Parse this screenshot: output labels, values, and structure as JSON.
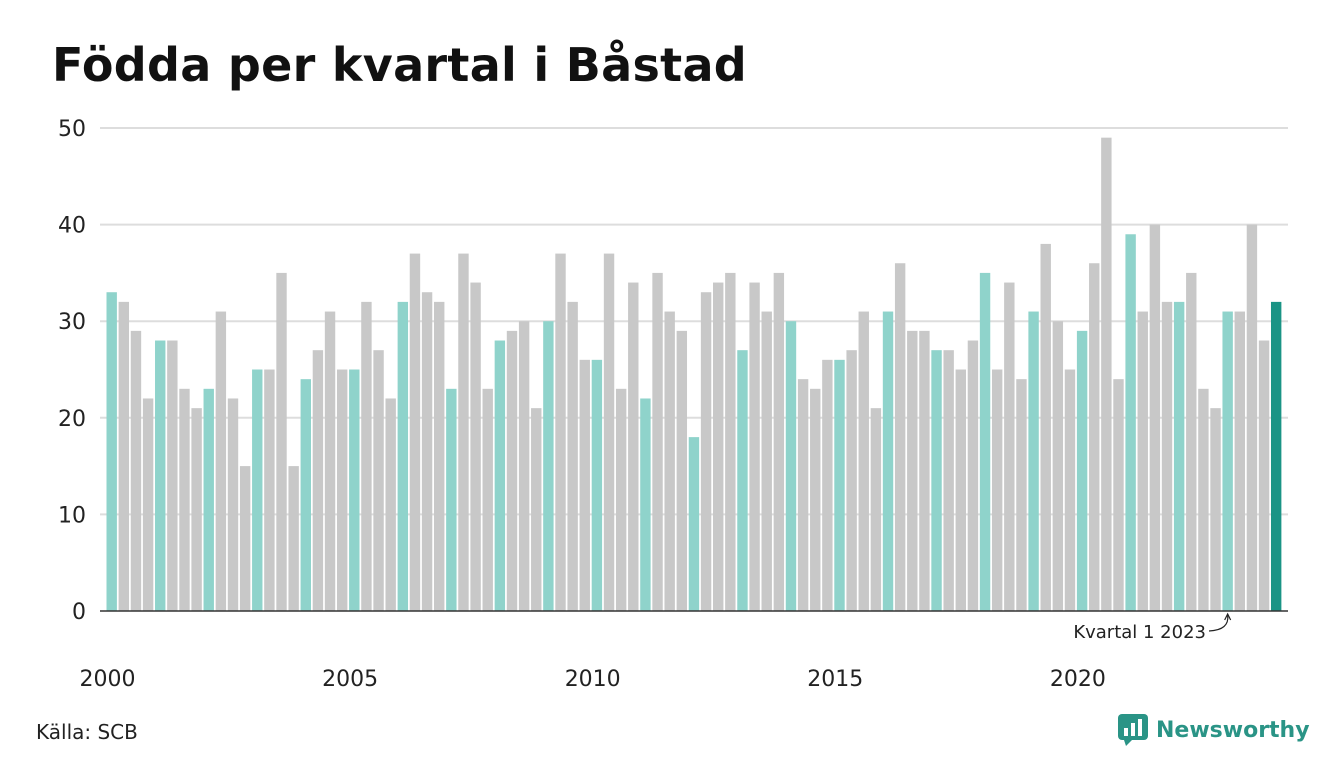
{
  "title": "Födda per kvartal i Båstad",
  "source": "Källa: SCB",
  "brand": "Newsworthy",
  "colors": {
    "q1": "#8fd3cb",
    "other": "#c8c8c8",
    "latest": "#1a9485",
    "grid": "#dddddd",
    "axis": "#333333",
    "brand": "#2a9486"
  },
  "chart_data": {
    "type": "bar",
    "title": "Födda per kvartal i Båstad",
    "xlabel": "",
    "ylabel": "",
    "ylim": [
      0,
      50
    ],
    "yticks": [
      0,
      10,
      20,
      30,
      40,
      50
    ],
    "xtick_labels": [
      "2000",
      "2005",
      "2010",
      "2015",
      "2020"
    ],
    "start_year": 2000,
    "grid": true,
    "annotation": {
      "text": "Kvartal 1 2023"
    },
    "values": [
      33,
      32,
      29,
      22,
      28,
      28,
      23,
      21,
      23,
      31,
      22,
      15,
      25,
      25,
      35,
      15,
      24,
      27,
      31,
      25,
      25,
      32,
      27,
      22,
      32,
      37,
      33,
      32,
      23,
      37,
      34,
      23,
      28,
      29,
      30,
      21,
      30,
      37,
      32,
      26,
      26,
      37,
      23,
      34,
      22,
      35,
      31,
      29,
      18,
      33,
      34,
      35,
      27,
      34,
      31,
      35,
      30,
      24,
      23,
      26,
      26,
      27,
      31,
      21,
      31,
      36,
      29,
      29,
      27,
      27,
      25,
      28,
      35,
      25,
      34,
      24,
      31,
      38,
      30,
      25,
      29,
      36,
      49,
      24,
      39,
      31,
      40,
      32,
      32,
      35,
      23,
      21,
      31,
      31,
      40,
      28,
      32
    ]
  }
}
